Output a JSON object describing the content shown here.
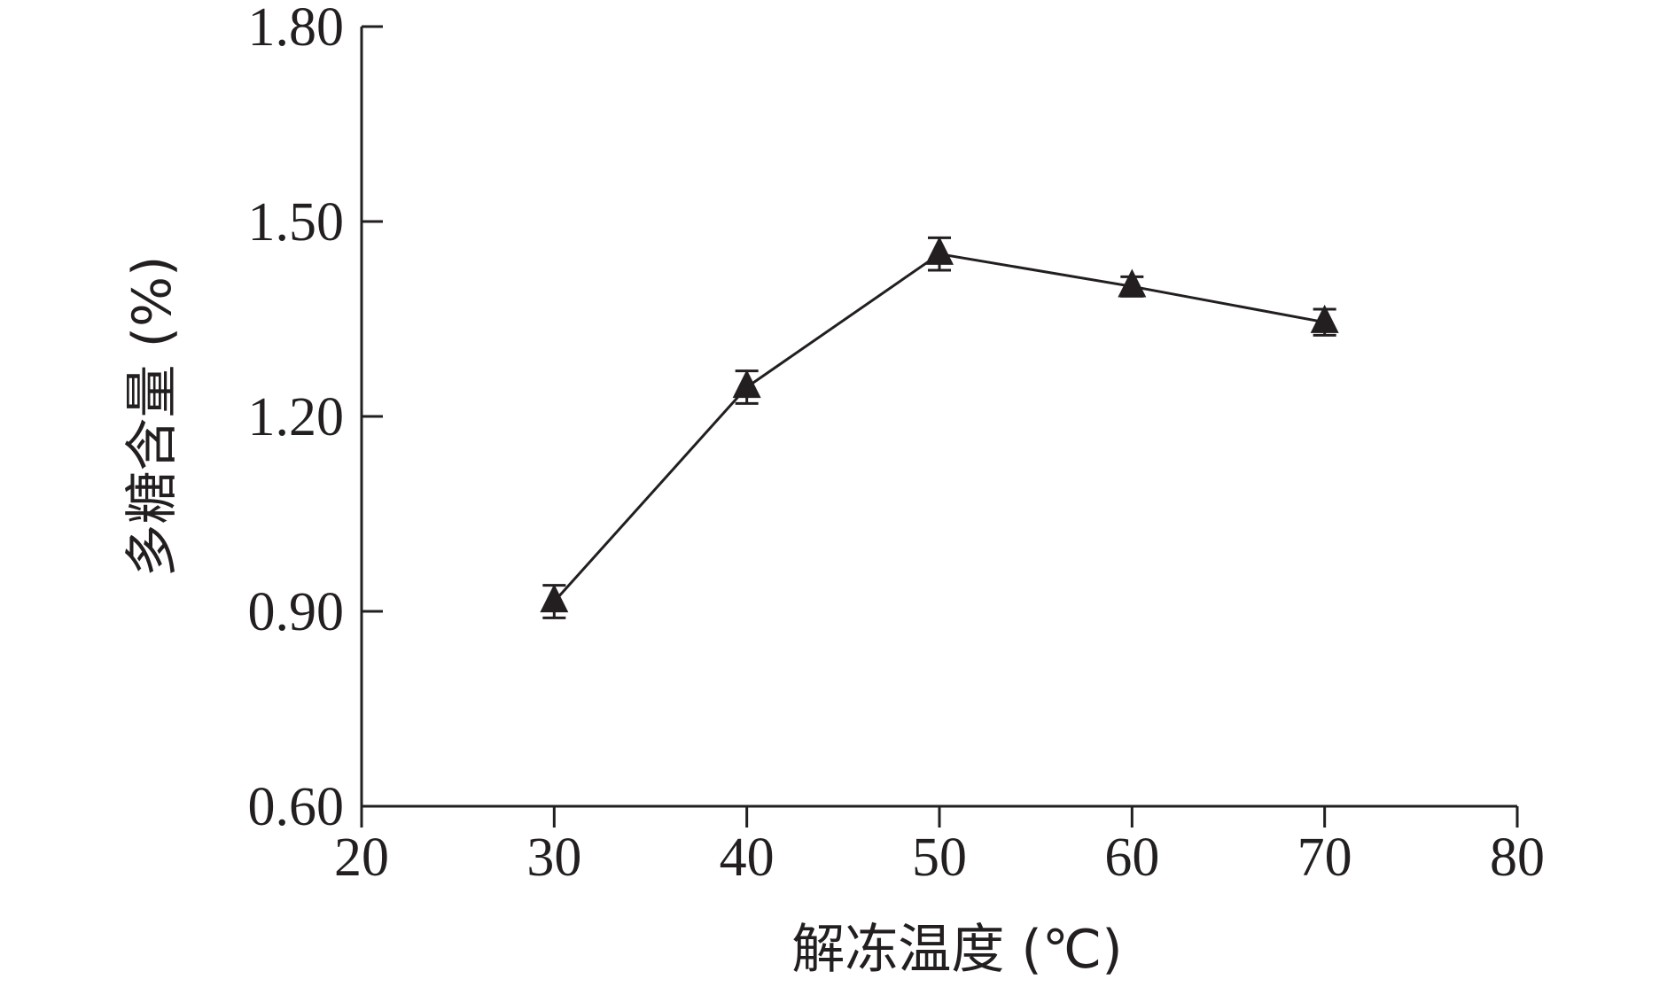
{
  "chart_data": {
    "type": "line",
    "xlabel": "解冻温度 (℃)",
    "ylabel": "多糖含量 (%)",
    "xlim": [
      20,
      80
    ],
    "ylim": [
      0.6,
      1.8
    ],
    "x_ticks": [
      20,
      30,
      40,
      50,
      60,
      70,
      80
    ],
    "x_tick_labels": [
      "20",
      "30",
      "40",
      "50",
      "60",
      "70",
      "80"
    ],
    "y_ticks": [
      0.6,
      0.9,
      1.2,
      1.5,
      1.8
    ],
    "y_tick_labels": [
      "0.60",
      "0.90",
      "1.20",
      "1.50",
      "1.80"
    ],
    "grid": false,
    "series": [
      {
        "marker": "triangle",
        "x": [
          30,
          40,
          50,
          60,
          70
        ],
        "y": [
          0.915,
          1.245,
          1.45,
          1.4,
          1.345
        ],
        "error": [
          0.025,
          0.025,
          0.025,
          0.015,
          0.02
        ]
      }
    ],
    "colors": {
      "line": "#231f20",
      "axis": "#231f20"
    }
  }
}
